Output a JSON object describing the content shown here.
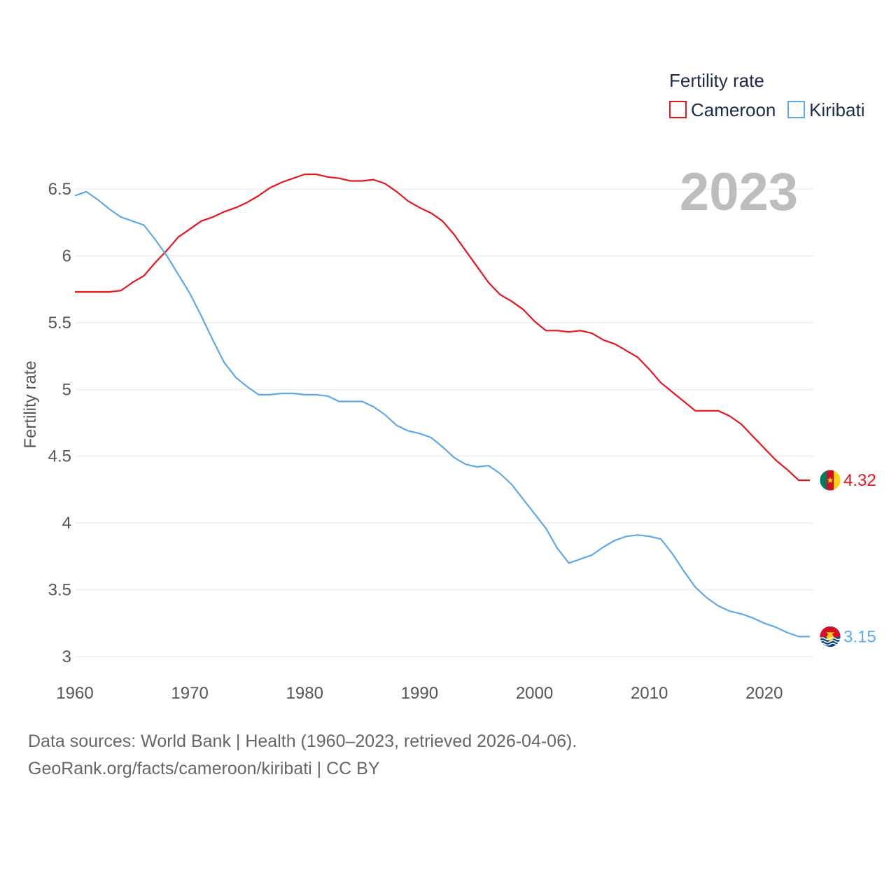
{
  "chart_data": {
    "type": "line",
    "title": "Fertility rate",
    "ylabel": "Fertility rate",
    "xlabel": "",
    "year_label": "2023",
    "xlim": [
      1960,
      2023
    ],
    "ylim": [
      3,
      6.5
    ],
    "x_ticks": [
      1960,
      1970,
      1980,
      1990,
      2000,
      2010,
      2020
    ],
    "y_ticks": [
      3,
      3.5,
      4,
      4.5,
      5,
      5.5,
      6,
      6.5
    ],
    "y_tick_labels": [
      "3",
      "3.5",
      "4",
      "4.5",
      "5",
      "5.5",
      "6",
      "6.5"
    ],
    "x": [
      1960,
      1961,
      1962,
      1963,
      1964,
      1965,
      1966,
      1967,
      1968,
      1969,
      1970,
      1971,
      1972,
      1973,
      1974,
      1975,
      1976,
      1977,
      1978,
      1979,
      1980,
      1981,
      1982,
      1983,
      1984,
      1985,
      1986,
      1987,
      1988,
      1989,
      1990,
      1991,
      1992,
      1993,
      1994,
      1995,
      1996,
      1997,
      1998,
      1999,
      2000,
      2001,
      2002,
      2003,
      2004,
      2005,
      2006,
      2007,
      2008,
      2009,
      2010,
      2011,
      2012,
      2013,
      2014,
      2015,
      2016,
      2017,
      2018,
      2019,
      2020,
      2021,
      2022,
      2023
    ],
    "series": [
      {
        "name": "Cameroon",
        "color": "#e8141e",
        "end_label": "4.32",
        "flag": "cameroon-flag-icon",
        "values": [
          5.73,
          5.73,
          5.73,
          5.73,
          5.74,
          5.8,
          5.85,
          5.95,
          6.04,
          6.14,
          6.2,
          6.26,
          6.29,
          6.33,
          6.36,
          6.4,
          6.45,
          6.51,
          6.55,
          6.58,
          6.61,
          6.61,
          6.59,
          6.58,
          6.56,
          6.56,
          6.57,
          6.54,
          6.48,
          6.41,
          6.36,
          6.32,
          6.26,
          6.16,
          6.04,
          5.92,
          5.8,
          5.71,
          5.66,
          5.6,
          5.51,
          5.44,
          5.44,
          5.43,
          5.44,
          5.42,
          5.37,
          5.34,
          5.29,
          5.24,
          5.15,
          5.05,
          4.98,
          4.91,
          4.84,
          4.84,
          4.84,
          4.8,
          4.74,
          4.65,
          4.56,
          4.47,
          4.4,
          4.32
        ]
      },
      {
        "name": "Kiribati",
        "color": "#5fa8e8",
        "end_label": "3.15",
        "flag": "kiribati-flag-icon",
        "values": [
          6.45,
          6.48,
          6.42,
          6.35,
          6.29,
          6.26,
          6.23,
          6.12,
          6.0,
          5.86,
          5.72,
          5.55,
          5.37,
          5.2,
          5.09,
          5.02,
          4.96,
          4.96,
          4.97,
          4.97,
          4.96,
          4.96,
          4.95,
          4.91,
          4.91,
          4.91,
          4.87,
          4.81,
          4.73,
          4.69,
          4.67,
          4.64,
          4.57,
          4.49,
          4.44,
          4.42,
          4.43,
          4.37,
          4.29,
          4.18,
          4.07,
          3.96,
          3.81,
          3.7,
          3.73,
          3.76,
          3.82,
          3.87,
          3.9,
          3.91,
          3.9,
          3.88,
          3.77,
          3.64,
          3.52,
          3.44,
          3.38,
          3.34,
          3.32,
          3.29,
          3.25,
          3.22,
          3.18,
          3.15
        ]
      }
    ],
    "legend": {
      "title": "Fertility rate",
      "position": "top-right"
    }
  },
  "source": {
    "line1": "Data sources: World Bank | Health (1960–2023, retrieved 2026-04-06).",
    "line2": "GeoRank.org/facts/cameroon/kiribati | CC BY"
  }
}
